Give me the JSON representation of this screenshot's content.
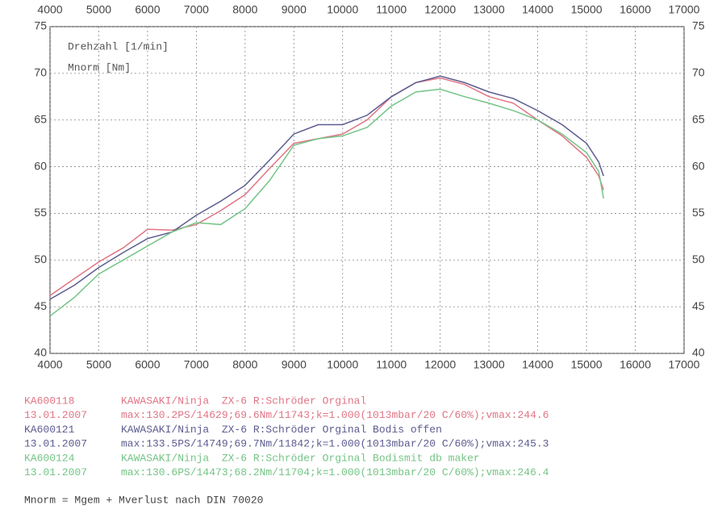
{
  "chart_data": {
    "type": "line",
    "xlabel": "Drehzahl [1/min]",
    "ylabel": "Mnorm [Nm]",
    "x": [
      4000,
      4500,
      5000,
      5500,
      6000,
      6500,
      7000,
      7500,
      8000,
      8500,
      9000,
      9500,
      10000,
      10500,
      11000,
      11500,
      12000,
      12500,
      13000,
      13500,
      14000,
      14500,
      15000,
      15250,
      15350
    ],
    "series": [
      {
        "name": "KAWASAKI/Ninja  ZX-6 R:Schröder Orginal",
        "id": "KA600118",
        "date": "13.01.2007",
        "stats": "max:130.2PS/14629;69.6Nm/11743;k=1.000(1013mbar/20 C/60%);vmax:244.6",
        "color": "#e07585",
        "values": [
          46.2,
          48,
          49.8,
          51.3,
          53.3,
          53.2,
          53.8,
          55.3,
          57,
          59.8,
          62.5,
          63,
          63.5,
          65,
          67.5,
          69,
          69.5,
          68.8,
          67.5,
          66.8,
          65,
          63.3,
          61,
          59,
          57.5
        ]
      },
      {
        "name": "KAWASAKI/Ninja  ZX-6 R:Schröder Orginal Bodis offen",
        "id": "KA600121",
        "date": "13.01.2007",
        "stats": "max:133.5PS/14749;69.7Nm/11842;k=1.000(1013mbar/20 C/60%);vmax:245.3",
        "color": "#5c5c90",
        "values": [
          45.8,
          47.3,
          49.2,
          50.8,
          52.3,
          53,
          54.8,
          56.3,
          58,
          60.7,
          63.5,
          64.5,
          64.5,
          65.5,
          67.5,
          69,
          69.7,
          69,
          68,
          67.3,
          66,
          64.5,
          62.5,
          60.5,
          59
        ]
      },
      {
        "name": "KAWASAKI/Ninja  ZX-6 R:Schröder Orginal Bodismit db maker",
        "id": "KA600124",
        "date": "13.01.2007",
        "stats": "max:130.6PS/14473;68.2Nm/11704;k=1.000(1013mbar/20 C/60%);vmax:246.4",
        "color": "#74c486",
        "values": [
          44,
          46,
          48.5,
          50,
          51.5,
          53,
          54,
          53.8,
          55.5,
          58.5,
          62.3,
          63,
          63.3,
          64.2,
          66.5,
          68,
          68.3,
          67.5,
          66.8,
          66,
          65,
          63.5,
          61.5,
          59.5,
          56.6
        ]
      }
    ],
    "xlim": [
      4000,
      17000
    ],
    "xticks": [
      4000,
      5000,
      6000,
      7000,
      8000,
      9000,
      10000,
      11000,
      12000,
      13000,
      14000,
      15000,
      16000,
      17000
    ],
    "ylim": [
      40,
      75
    ],
    "yticks": [
      40,
      45,
      50,
      55,
      60,
      65,
      70,
      75
    ],
    "grid": true,
    "note": "Mnorm = Mgem + Mverlust nach DIN 70020"
  }
}
